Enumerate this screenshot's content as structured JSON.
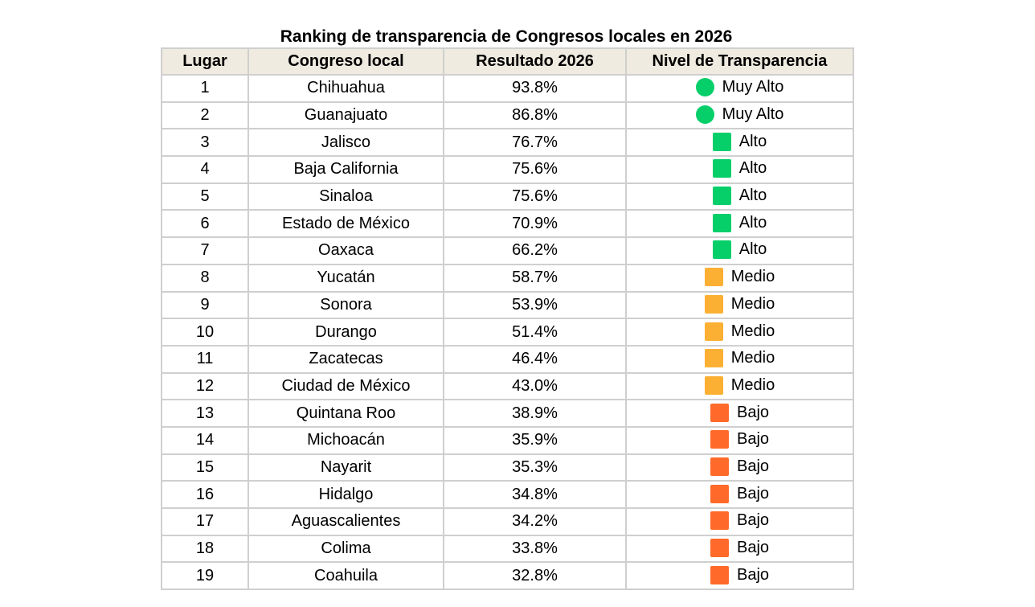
{
  "title": "Ranking de transparencia de Congresos locales en 2026",
  "headers": [
    "Lugar",
    "Congreso local",
    "Resultado 2026",
    "Nivel de Transparencia"
  ],
  "levels": {
    "Muy Alto": {
      "shape": "circle",
      "color": "#06cf6a"
    },
    "Alto": {
      "shape": "square",
      "color": "#06cf6a"
    },
    "Medio": {
      "shape": "square",
      "color": "#fbb034"
    },
    "Bajo": {
      "shape": "square",
      "color": "#ff6a2a"
    }
  },
  "rows": [
    {
      "lugar": "1",
      "congreso": "Chihuahua",
      "resultado": "93.8%",
      "nivel": "Muy Alto"
    },
    {
      "lugar": "2",
      "congreso": "Guanajuato",
      "resultado": "86.8%",
      "nivel": "Muy Alto"
    },
    {
      "lugar": "3",
      "congreso": "Jalisco",
      "resultado": "76.7%",
      "nivel": "Alto"
    },
    {
      "lugar": "4",
      "congreso": "Baja California",
      "resultado": "75.6%",
      "nivel": "Alto"
    },
    {
      "lugar": "5",
      "congreso": "Sinaloa",
      "resultado": "75.6%",
      "nivel": "Alto"
    },
    {
      "lugar": "6",
      "congreso": "Estado de México",
      "resultado": "70.9%",
      "nivel": "Alto"
    },
    {
      "lugar": "7",
      "congreso": "Oaxaca",
      "resultado": "66.2%",
      "nivel": "Alto"
    },
    {
      "lugar": "8",
      "congreso": "Yucatán",
      "resultado": "58.7%",
      "nivel": "Medio"
    },
    {
      "lugar": "9",
      "congreso": "Sonora",
      "resultado": "53.9%",
      "nivel": "Medio"
    },
    {
      "lugar": "10",
      "congreso": "Durango",
      "resultado": "51.4%",
      "nivel": "Medio"
    },
    {
      "lugar": "11",
      "congreso": "Zacatecas",
      "resultado": "46.4%",
      "nivel": "Medio"
    },
    {
      "lugar": "12",
      "congreso": "Ciudad de México",
      "resultado": "43.0%",
      "nivel": "Medio"
    },
    {
      "lugar": "13",
      "congreso": "Quintana Roo",
      "resultado": "38.9%",
      "nivel": "Bajo"
    },
    {
      "lugar": "14",
      "congreso": "Michoacán",
      "resultado": "35.9%",
      "nivel": "Bajo"
    },
    {
      "lugar": "15",
      "congreso": "Nayarit",
      "resultado": "35.3%",
      "nivel": "Bajo"
    },
    {
      "lugar": "16",
      "congreso": "Hidalgo",
      "resultado": "34.8%",
      "nivel": "Bajo"
    },
    {
      "lugar": "17",
      "congreso": "Aguascalientes",
      "resultado": "34.2%",
      "nivel": "Bajo"
    },
    {
      "lugar": "18",
      "congreso": "Colima",
      "resultado": "33.8%",
      "nivel": "Bajo"
    },
    {
      "lugar": "19",
      "congreso": "Coahuila",
      "resultado": "32.8%",
      "nivel": "Bajo"
    }
  ]
}
